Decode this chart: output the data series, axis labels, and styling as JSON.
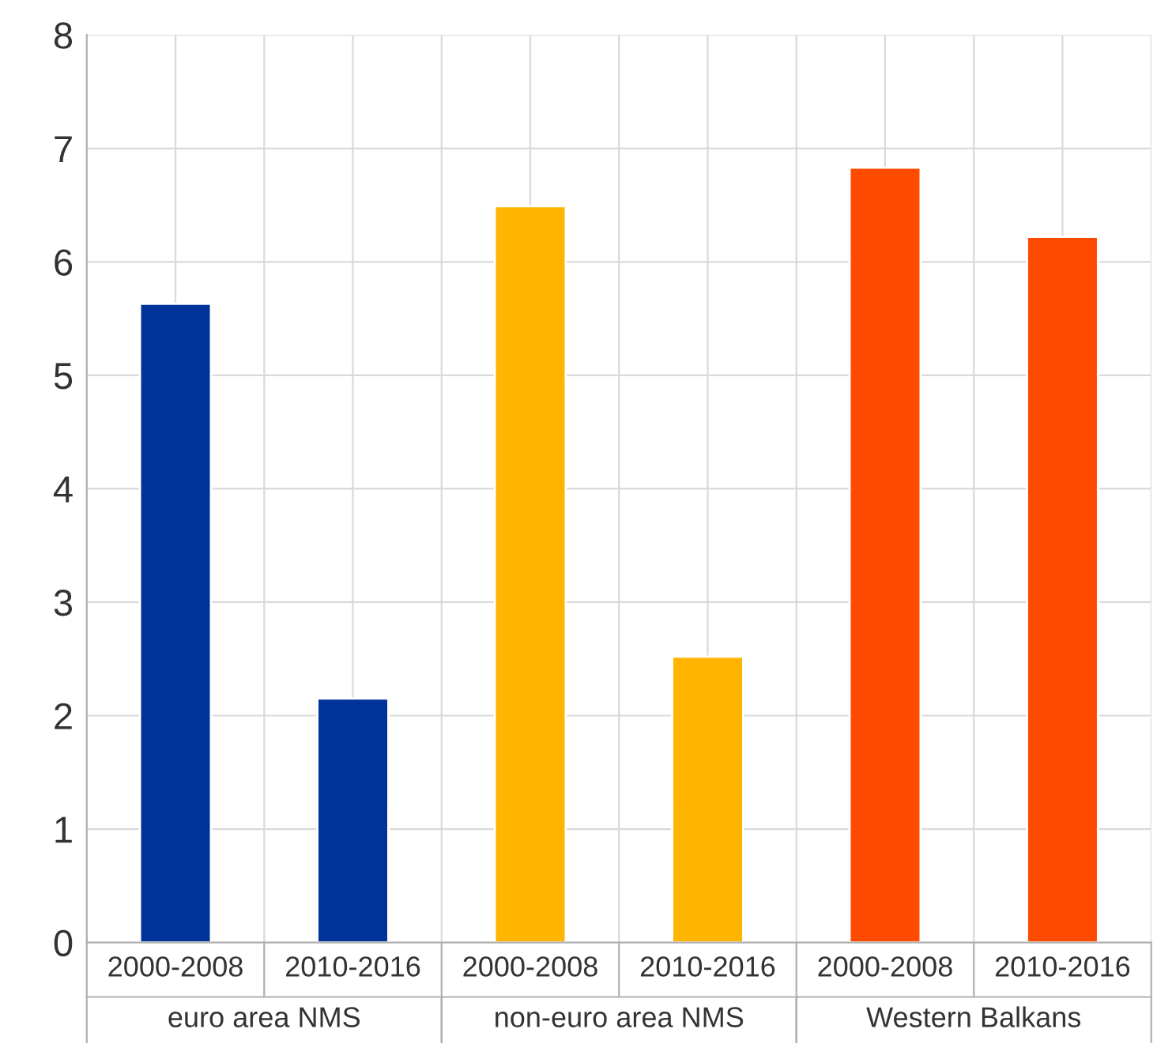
{
  "chart_data": {
    "type": "bar",
    "categories": [
      "2000-2008",
      "2010-2016",
      "2000-2008",
      "2010-2016",
      "2000-2008",
      "2010-2016"
    ],
    "series": [
      {
        "name": "euro area NMS",
        "color": "#003299",
        "values": [
          5.63,
          2.15,
          null,
          null,
          null,
          null
        ]
      },
      {
        "name": "non-euro area NMS",
        "color": "#ffb400",
        "values": [
          null,
          null,
          6.49,
          2.52,
          null,
          null
        ]
      },
      {
        "name": "Western Balkans",
        "color": "#ff4b00",
        "values": [
          null,
          null,
          null,
          null,
          6.83,
          6.22
        ]
      }
    ],
    "ylim": [
      0,
      8
    ],
    "yticks": [
      0,
      1,
      2,
      3,
      4,
      5,
      6,
      7,
      8
    ],
    "grid": true,
    "legend": false
  }
}
